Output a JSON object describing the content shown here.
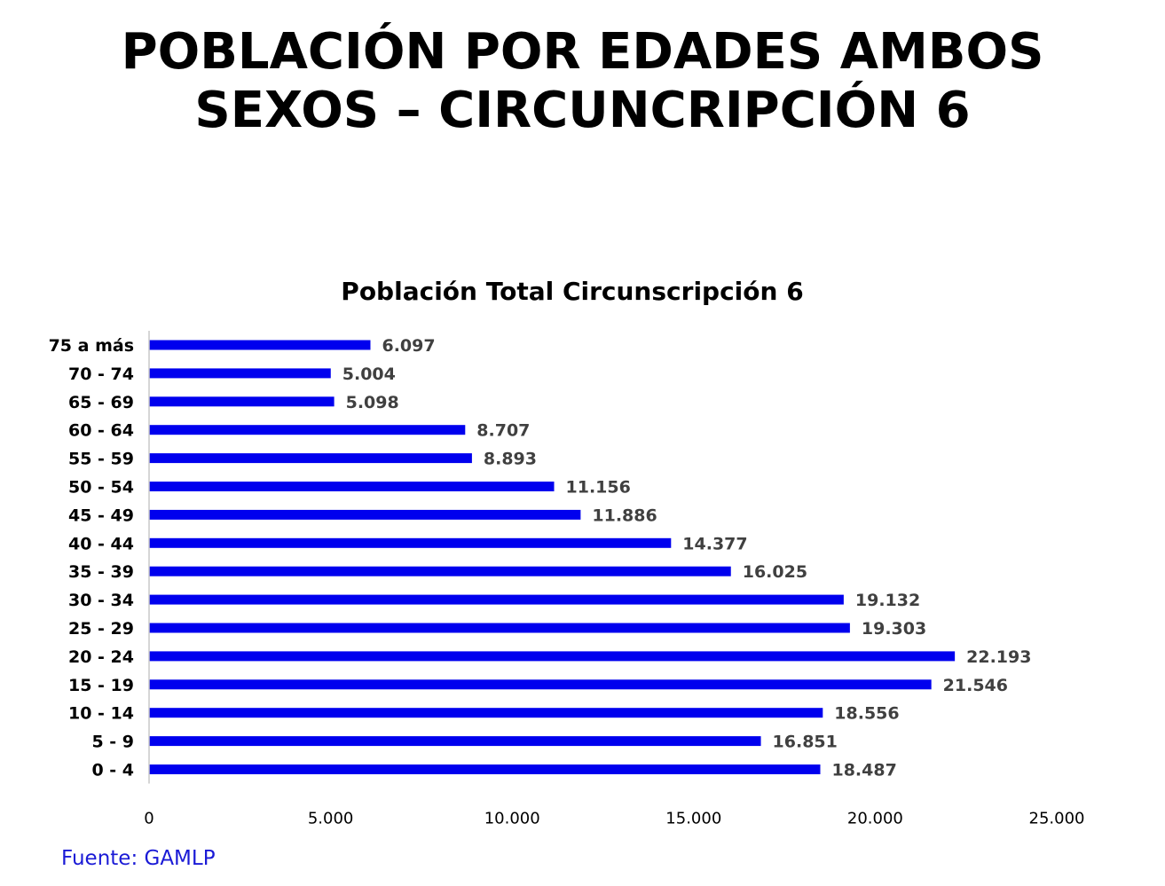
{
  "page": {
    "title_line1": "POBLACIÓN POR EDADES AMBOS",
    "title_line2": "SEXOS – CIRCUNCRIPCIÓN 6",
    "source": "Fuente: GAMLP"
  },
  "chart_data": {
    "type": "bar",
    "orientation": "horizontal",
    "title": "Población Total Circunscripción 6",
    "categories": [
      "75 a más",
      "70 - 74",
      "65 - 69",
      "60 - 64",
      "55 - 59",
      "50 - 54",
      "45 - 49",
      "40 - 44",
      "35 - 39",
      "30 - 34",
      "25 - 29",
      "20 - 24",
      "15 - 19",
      "10 - 14",
      "5 - 9",
      "0 - 4"
    ],
    "values": [
      6097,
      5004,
      5098,
      8707,
      8893,
      11156,
      11886,
      14377,
      16025,
      19132,
      19303,
      22193,
      21546,
      18556,
      16851,
      18487
    ],
    "value_labels": [
      "6.097",
      "5.004",
      "5.098",
      "8.707",
      "8.893",
      "11.156",
      "11.886",
      "14.377",
      "16.025",
      "19.132",
      "19.303",
      "22.193",
      "21.546",
      "18.556",
      "16.851",
      "18.487"
    ],
    "xlim": [
      0,
      25000
    ],
    "xticks": [
      0,
      5000,
      10000,
      15000,
      20000,
      25000
    ],
    "xtick_labels": [
      "0",
      "5.000",
      "10.000",
      "15.000",
      "20.000",
      "25.000"
    ],
    "xlabel": "",
    "ylabel": "",
    "grid": false,
    "legend": "none",
    "bar_color": "#0000ee",
    "value_label_color": "#404040"
  }
}
